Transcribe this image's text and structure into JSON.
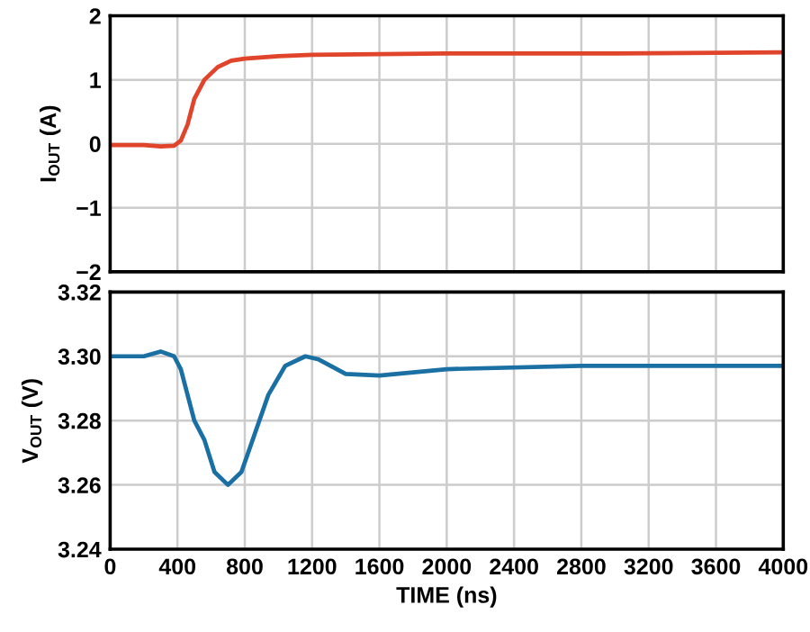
{
  "chart_data": [
    {
      "type": "line",
      "ylabel": "I$_{OUT}$ (A)",
      "xlim": [
        0,
        4000
      ],
      "ylim": [
        -2,
        2
      ],
      "xticks": [
        0,
        400,
        800,
        1200,
        1600,
        2000,
        2400,
        2800,
        3200,
        3600,
        4000
      ],
      "yticks": [
        {
          "value": -2,
          "label": "−2"
        },
        {
          "value": -1,
          "label": "−1"
        },
        0,
        1,
        2
      ],
      "tick_labels": "y",
      "grid": true,
      "series": [
        {
          "color": "#e0442a",
          "x": [
            0,
            100,
            200,
            300,
            380,
            420,
            460,
            500,
            560,
            640,
            720,
            800,
            1000,
            1200,
            1600,
            2000,
            3000,
            4000
          ],
          "values": [
            -0.02,
            -0.02,
            -0.02,
            -0.04,
            -0.03,
            0.05,
            0.3,
            0.7,
            1.0,
            1.2,
            1.3,
            1.33,
            1.37,
            1.39,
            1.4,
            1.41,
            1.41,
            1.43
          ]
        }
      ]
    },
    {
      "type": "line",
      "ylabel": "V$_{OUT}$ (V)",
      "xlabel": "TIME (ns)",
      "xlim": [
        0,
        4000
      ],
      "ylim": [
        3.24,
        3.32
      ],
      "xticks": [
        0,
        400,
        800,
        1200,
        1600,
        2000,
        2400,
        2800,
        3200,
        3600,
        4000
      ],
      "yticks": [
        {
          "value": 3.24,
          "label": "3.24"
        },
        {
          "value": 3.26,
          "label": "3.26"
        },
        {
          "value": 3.28,
          "label": "3.28"
        },
        {
          "value": 3.3,
          "label": "3.30"
        },
        {
          "value": 3.32,
          "label": "3.32"
        }
      ],
      "grid": true,
      "series": [
        {
          "color": "#1a6fa3",
          "x": [
            0,
            200,
            300,
            380,
            420,
            460,
            500,
            560,
            620,
            700,
            780,
            860,
            940,
            1040,
            1160,
            1240,
            1400,
            1600,
            2000,
            2800,
            4000
          ],
          "values": [
            3.3,
            3.3,
            3.3015,
            3.3,
            3.296,
            3.288,
            3.28,
            3.274,
            3.264,
            3.26,
            3.264,
            3.276,
            3.288,
            3.297,
            3.3,
            3.299,
            3.2945,
            3.294,
            3.296,
            3.297,
            3.297
          ]
        }
      ]
    }
  ]
}
